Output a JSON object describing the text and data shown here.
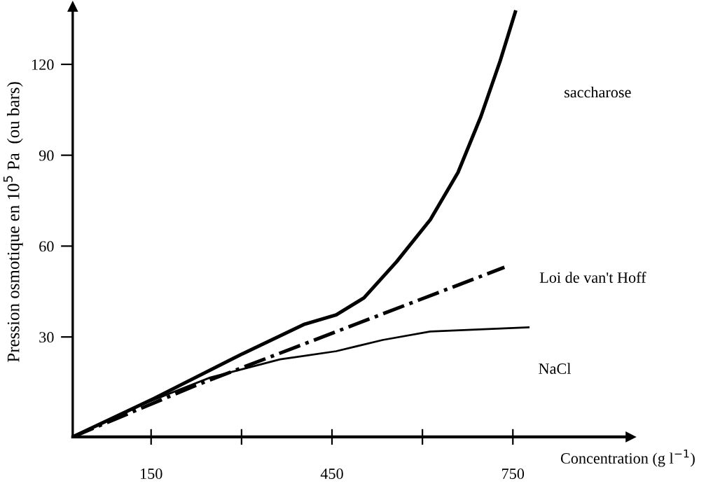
{
  "chart_data": {
    "type": "line",
    "xlabel": "Concentration (g l$^{−1}$)",
    "ylabel": "Pression osmotique en 10$^{5}$ Pa  (ou bars)",
    "xlim": [
      20,
      945
    ],
    "ylim": [
      -3,
      139
    ],
    "xticks": [
      150,
      {
        "value": 300,
        "label": null
      },
      450,
      {
        "value": 600,
        "label": null
      },
      750
    ],
    "yticks": [
      30,
      60,
      90,
      120
    ],
    "grid": false,
    "legend": false,
    "marker": "none",
    "series": [
      {
        "name": "saccharose",
        "color": "#000000",
        "line_style": "solid",
        "x": [
          20,
          155,
          301,
          403,
          457,
          503,
          557,
          613,
          659,
          697,
          729,
          754
        ],
        "values": [
          -3,
          9.7,
          24.4,
          34.1,
          37.3,
          42.9,
          54.8,
          68.7,
          84.3,
          102.8,
          121.2,
          137.3
        ]
      },
      {
        "name": "Loi de van't Hoff",
        "color": "#000000",
        "line_style": "dashdot",
        "x": [
          20,
          224,
          736
        ],
        "values": [
          -3,
          14,
          53
        ]
      },
      {
        "name": "NaCl",
        "color": "#000000",
        "line_style": "solid",
        "x": [
          20,
          131,
          248,
          364,
          457,
          534,
          613,
          776
        ],
        "values": [
          -3,
          7.4,
          16.6,
          22.6,
          25.3,
          29,
          31.8,
          33.2
        ]
      }
    ]
  }
}
